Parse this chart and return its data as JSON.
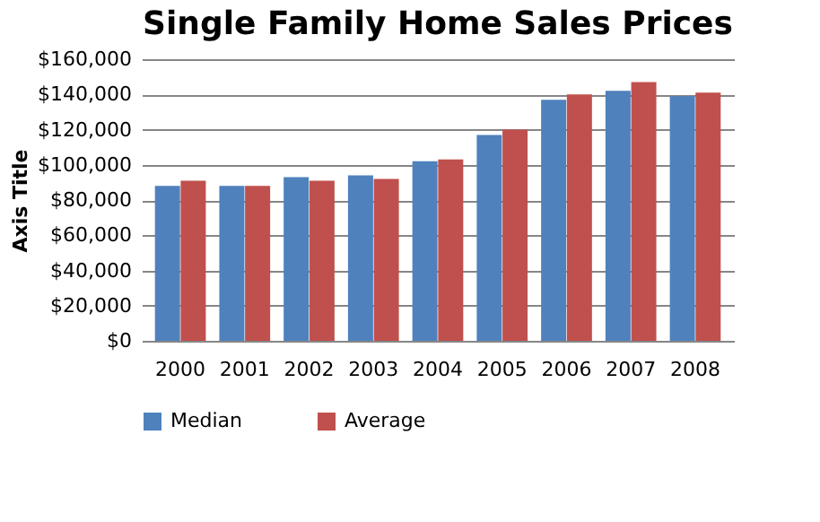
{
  "chart_data": {
    "type": "bar",
    "title": "Single Family Home Sales Prices",
    "ylabel": "Axis Title",
    "categories": [
      "2000",
      "2001",
      "2002",
      "2003",
      "2004",
      "2005",
      "2006",
      "2007",
      "2008"
    ],
    "series": [
      {
        "name": "Median",
        "color": "#4f81bd",
        "values": [
          88000,
          88000,
          93000,
          94000,
          102000,
          117000,
          137000,
          142000,
          139000
        ]
      },
      {
        "name": "Average",
        "color": "#c0504d",
        "values": [
          91000,
          88000,
          91000,
          92000,
          103000,
          120000,
          140000,
          147000,
          141000
        ]
      }
    ],
    "ylim": [
      0,
      160000
    ],
    "yticks": [
      {
        "value": 0,
        "label": "$0"
      },
      {
        "value": 20000,
        "label": "$20,000"
      },
      {
        "value": 40000,
        "label": "$40,000"
      },
      {
        "value": 60000,
        "label": "$60,000"
      },
      {
        "value": 80000,
        "label": "$80,000"
      },
      {
        "value": 100000,
        "label": "$100,000"
      },
      {
        "value": 120000,
        "label": "$120,000"
      },
      {
        "value": 140000,
        "label": "$140,000"
      },
      {
        "value": 160000,
        "label": "$160,000"
      }
    ],
    "grid": "y",
    "legend": "bottom"
  }
}
